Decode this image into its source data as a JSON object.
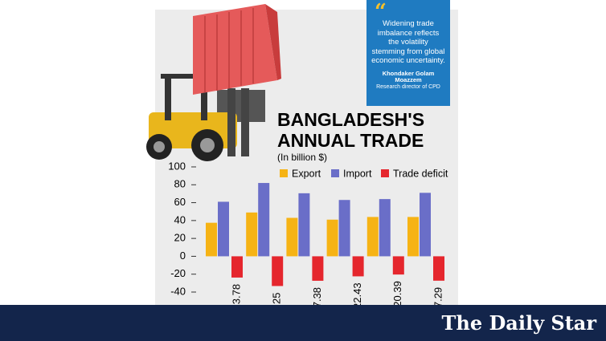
{
  "chart_data": {
    "type": "bar",
    "title": [
      "BANGLADESH'S",
      "ANNUAL TRADE"
    ],
    "subtitle": "(In billion $)",
    "categories": [
      null,
      null,
      null,
      null,
      null,
      null
    ],
    "series": [
      {
        "name": "Export",
        "color": "#f6b315",
        "values": [
          37.5,
          49,
          43,
          41,
          44,
          44
        ]
      },
      {
        "name": "Import",
        "color": "#6a6ec8",
        "values": [
          61,
          82,
          70.5,
          63,
          64,
          71
        ]
      },
      {
        "name": "Trade deficit",
        "color": "#e5262d",
        "values": [
          -23.78,
          -33.25,
          -27.38,
          -22.43,
          -20.39,
          -27.29
        ]
      }
    ],
    "ylim": [
      -40,
      100
    ],
    "yticks": [
      100,
      80,
      60,
      40,
      20,
      0,
      -20,
      -40
    ]
  },
  "quote": {
    "text": "Widening trade imbalance reflects the volatility stemming from global economic uncertainty.",
    "author": "Khondaker Golam Moazzem",
    "role": "Research director of CPD"
  },
  "footer": {
    "brand": "The Daily Star"
  }
}
